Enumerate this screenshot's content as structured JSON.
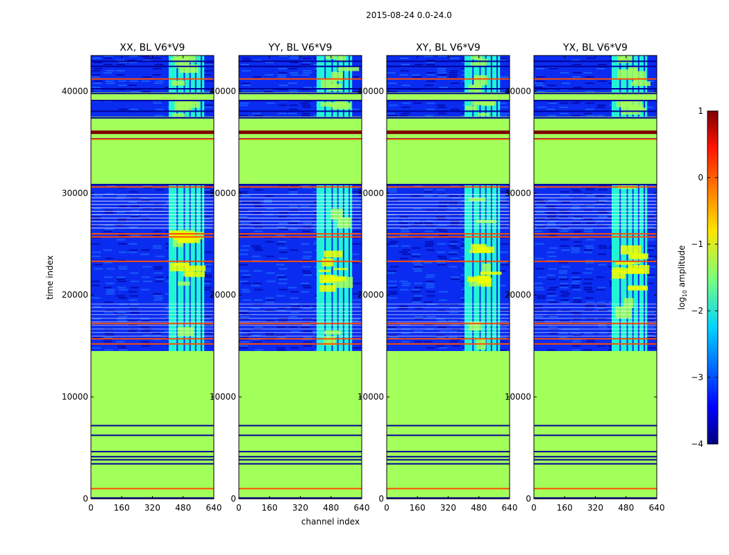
{
  "suptitle": "2015-08-24 0.0-24.0",
  "colors": {
    "background": "#a3ff5a",
    "dark_blue": "#000099",
    "blue": "#0a2cf0",
    "mid_blue": "#1e6fff",
    "cyan": "#21f4d5",
    "green": "#a3ff5a",
    "yellow": "#f0ff00",
    "orange": "#ff8b00",
    "dark_red": "#800000",
    "white_gap": "#ffffff"
  },
  "chart_data": {
    "type": "heatmap",
    "suptitle": "2015-08-24 0.0-24.0",
    "xlabel": "channel index",
    "ylabel": "time index",
    "xlim": [
      0,
      640
    ],
    "ylim": [
      0,
      43500
    ],
    "xticks": [
      0,
      160,
      320,
      480,
      640
    ],
    "yticks": [
      0,
      10000,
      20000,
      30000,
      40000
    ],
    "panels": [
      {
        "title": "XX, BL V6*V9",
        "active_x": [
          405,
          590
        ],
        "bright_y": [
          20500,
          26000
        ]
      },
      {
        "title": "YY, BL V6*V9",
        "active_x": [
          405,
          590
        ],
        "bright_y": [
          20000,
          24000
        ]
      },
      {
        "title": "XY, BL V6*V9",
        "active_x": [
          405,
          590
        ],
        "bright_y": [
          20000,
          25000
        ]
      },
      {
        "title": "YX, BL V6*V9",
        "active_x": [
          405,
          590
        ],
        "bright_y": [
          20000,
          26000
        ]
      }
    ],
    "flat_regions": [
      {
        "y": [
          300,
          4600
        ],
        "level": -1.0
      },
      {
        "y": [
          4900,
          7200
        ],
        "level": -1.0
      },
      {
        "y": [
          7400,
          14400
        ],
        "level": -1.0
      },
      {
        "y": [
          31000,
          35200
        ],
        "level": -1.0
      },
      {
        "y": [
          36300,
          37400
        ],
        "level": -1.0
      },
      {
        "y": [
          39200,
          39800
        ],
        "level": -1.0
      }
    ],
    "noise_regions": [
      {
        "y": [
          14500,
          30800
        ],
        "level": -3.3
      },
      {
        "y": [
          37500,
          39100
        ],
        "level": -3.3
      },
      {
        "y": [
          39900,
          43500
        ],
        "level": -3.3
      }
    ],
    "hot_rows": [
      {
        "y": 36000,
        "level": 1.0
      },
      {
        "y": 15200,
        "level": 0.0
      },
      {
        "y": 15700,
        "level": 0.0
      },
      {
        "y": 25700,
        "level": 0.0
      },
      {
        "y": 26000,
        "level": 0.0
      },
      {
        "y": 23300,
        "level": 0.0
      },
      {
        "y": 17200,
        "level": 0.0
      },
      {
        "y": 41200,
        "level": 0.0
      },
      {
        "y": 1000,
        "level": 0.0
      },
      {
        "y": 35300,
        "level": 0.0
      },
      {
        "y": 30600,
        "level": 0.0
      }
    ],
    "colorbar": {
      "label": "log10 amplitude",
      "min": -4,
      "max": 1,
      "ticks": [
        1,
        0,
        -1,
        -2,
        -3,
        -4
      ],
      "tick_labels": [
        "1",
        "0",
        "−1",
        "−2",
        "−3",
        "−4"
      ],
      "colormap": "jet"
    }
  }
}
